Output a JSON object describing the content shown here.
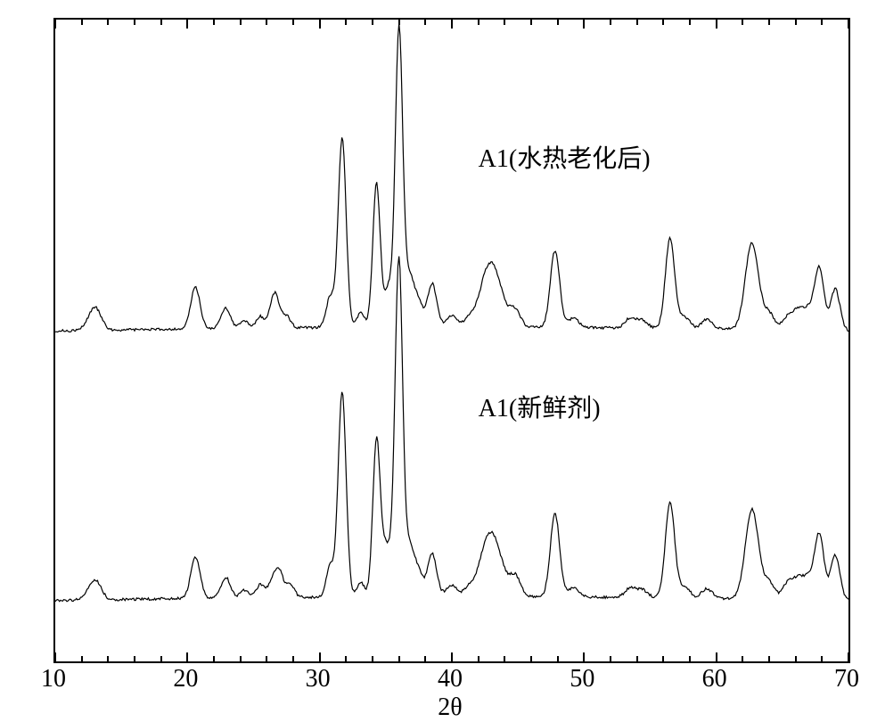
{
  "chart": {
    "type": "xrd-line",
    "background_color": "#ffffff",
    "border_color": "#000000",
    "line_color": "#000000",
    "line_width": 1.2,
    "x_axis": {
      "label": "2θ",
      "min": 10,
      "max": 70,
      "ticks": [
        10,
        20,
        30,
        40,
        50,
        60,
        70
      ],
      "tick_fontsize": 28,
      "label_fontsize": 28,
      "minor_tick_step": 2
    },
    "y_axis": {
      "show_ticks": false,
      "show_labels": false
    },
    "series": [
      {
        "name": "A1_aged",
        "label": "A1(水热老化后)",
        "label_pos_x": 42,
        "label_pos_y_frac": 0.205,
        "baseline_frac": 0.485,
        "baseline_drift": 0.006,
        "noise_amp": 0.004,
        "peaks": [
          {
            "x": 12.8,
            "h": 0.022,
            "w": 0.45
          },
          {
            "x": 13.2,
            "h": 0.018,
            "w": 0.4
          },
          {
            "x": 20.6,
            "h": 0.065,
            "w": 0.35
          },
          {
            "x": 22.9,
            "h": 0.032,
            "w": 0.35
          },
          {
            "x": 24.3,
            "h": 0.012,
            "w": 0.3
          },
          {
            "x": 25.5,
            "h": 0.018,
            "w": 0.3
          },
          {
            "x": 26.6,
            "h": 0.055,
            "w": 0.35
          },
          {
            "x": 27.5,
            "h": 0.018,
            "w": 0.3
          },
          {
            "x": 30.8,
            "h": 0.048,
            "w": 0.3
          },
          {
            "x": 31.7,
            "h": 0.295,
            "w": 0.3
          },
          {
            "x": 33.1,
            "h": 0.022,
            "w": 0.3
          },
          {
            "x": 34.3,
            "h": 0.225,
            "w": 0.28
          },
          {
            "x": 35.2,
            "h": 0.06,
            "w": 0.3
          },
          {
            "x": 36.0,
            "h": 0.465,
            "w": 0.28
          },
          {
            "x": 36.8,
            "h": 0.08,
            "w": 0.35
          },
          {
            "x": 37.5,
            "h": 0.035,
            "w": 0.3
          },
          {
            "x": 38.5,
            "h": 0.068,
            "w": 0.35
          },
          {
            "x": 40.0,
            "h": 0.018,
            "w": 0.4
          },
          {
            "x": 41.3,
            "h": 0.012,
            "w": 0.4
          },
          {
            "x": 42.5,
            "h": 0.04,
            "w": 0.6
          },
          {
            "x": 43.2,
            "h": 0.075,
            "w": 0.7
          },
          {
            "x": 44.8,
            "h": 0.025,
            "w": 0.4
          },
          {
            "x": 47.8,
            "h": 0.12,
            "w": 0.35
          },
          {
            "x": 49.2,
            "h": 0.015,
            "w": 0.4
          },
          {
            "x": 53.5,
            "h": 0.015,
            "w": 0.4
          },
          {
            "x": 54.4,
            "h": 0.012,
            "w": 0.4
          },
          {
            "x": 56.5,
            "h": 0.14,
            "w": 0.35
          },
          {
            "x": 57.6,
            "h": 0.018,
            "w": 0.4
          },
          {
            "x": 59.3,
            "h": 0.015,
            "w": 0.4
          },
          {
            "x": 62.7,
            "h": 0.135,
            "w": 0.5
          },
          {
            "x": 64.0,
            "h": 0.025,
            "w": 0.4
          },
          {
            "x": 65.4,
            "h": 0.02,
            "w": 0.4
          },
          {
            "x": 66.2,
            "h": 0.028,
            "w": 0.4
          },
          {
            "x": 67.0,
            "h": 0.03,
            "w": 0.4
          },
          {
            "x": 67.8,
            "h": 0.095,
            "w": 0.35
          },
          {
            "x": 69.0,
            "h": 0.065,
            "w": 0.35
          }
        ]
      },
      {
        "name": "A1_fresh",
        "label": "A1(新鲜剂)",
        "label_pos_x": 42,
        "label_pos_y_frac": 0.595,
        "baseline_frac": 0.905,
        "baseline_drift": 0.006,
        "noise_amp": 0.004,
        "peaks": [
          {
            "x": 12.8,
            "h": 0.02,
            "w": 0.45
          },
          {
            "x": 13.2,
            "h": 0.015,
            "w": 0.4
          },
          {
            "x": 20.6,
            "h": 0.065,
            "w": 0.35
          },
          {
            "x": 22.9,
            "h": 0.032,
            "w": 0.35
          },
          {
            "x": 24.3,
            "h": 0.012,
            "w": 0.3
          },
          {
            "x": 25.5,
            "h": 0.02,
            "w": 0.3
          },
          {
            "x": 26.5,
            "h": 0.03,
            "w": 0.35
          },
          {
            "x": 27.0,
            "h": 0.032,
            "w": 0.3
          },
          {
            "x": 27.8,
            "h": 0.02,
            "w": 0.3
          },
          {
            "x": 30.8,
            "h": 0.048,
            "w": 0.3
          },
          {
            "x": 31.7,
            "h": 0.32,
            "w": 0.3
          },
          {
            "x": 33.1,
            "h": 0.022,
            "w": 0.3
          },
          {
            "x": 34.3,
            "h": 0.245,
            "w": 0.28
          },
          {
            "x": 35.0,
            "h": 0.07,
            "w": 0.3
          },
          {
            "x": 35.6,
            "h": 0.05,
            "w": 0.3
          },
          {
            "x": 36.0,
            "h": 0.505,
            "w": 0.28
          },
          {
            "x": 36.8,
            "h": 0.08,
            "w": 0.35
          },
          {
            "x": 37.5,
            "h": 0.035,
            "w": 0.3
          },
          {
            "x": 38.5,
            "h": 0.068,
            "w": 0.35
          },
          {
            "x": 40.0,
            "h": 0.018,
            "w": 0.4
          },
          {
            "x": 41.3,
            "h": 0.012,
            "w": 0.4
          },
          {
            "x": 42.5,
            "h": 0.04,
            "w": 0.6
          },
          {
            "x": 43.2,
            "h": 0.075,
            "w": 0.7
          },
          {
            "x": 44.8,
            "h": 0.03,
            "w": 0.4
          },
          {
            "x": 47.8,
            "h": 0.13,
            "w": 0.35
          },
          {
            "x": 49.2,
            "h": 0.015,
            "w": 0.4
          },
          {
            "x": 53.5,
            "h": 0.015,
            "w": 0.4
          },
          {
            "x": 54.4,
            "h": 0.012,
            "w": 0.4
          },
          {
            "x": 56.5,
            "h": 0.15,
            "w": 0.35
          },
          {
            "x": 57.6,
            "h": 0.018,
            "w": 0.4
          },
          {
            "x": 59.3,
            "h": 0.015,
            "w": 0.4
          },
          {
            "x": 62.7,
            "h": 0.14,
            "w": 0.5
          },
          {
            "x": 64.0,
            "h": 0.025,
            "w": 0.4
          },
          {
            "x": 65.4,
            "h": 0.025,
            "w": 0.4
          },
          {
            "x": 66.2,
            "h": 0.03,
            "w": 0.4
          },
          {
            "x": 67.0,
            "h": 0.032,
            "w": 0.4
          },
          {
            "x": 67.8,
            "h": 0.1,
            "w": 0.35
          },
          {
            "x": 69.0,
            "h": 0.07,
            "w": 0.35
          }
        ]
      }
    ]
  }
}
